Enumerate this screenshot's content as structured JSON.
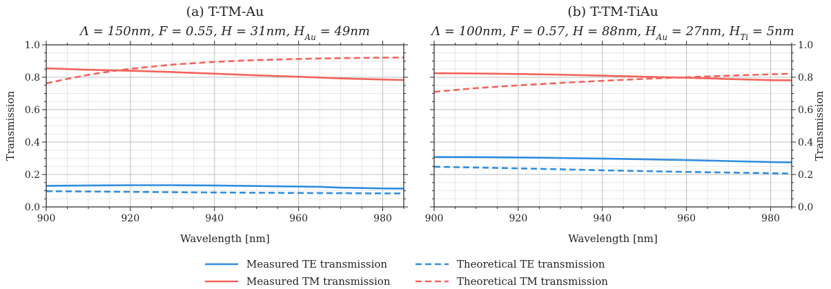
{
  "chart_data": [
    {
      "type": "line",
      "title": "(a) T-TM-Au",
      "subtitle": "Λ = 150nm, F = 0.55, H = 31nm, H_Au = 49nm",
      "xlabel": "Wavelength [nm]",
      "ylabel": "Transmission",
      "xlim": [
        900,
        985
      ],
      "ylim": [
        0.0,
        1.0
      ],
      "xticks": [
        900,
        920,
        940,
        960,
        980
      ],
      "yticks": [
        "0.0",
        "0.2",
        "0.4",
        "0.6",
        "0.8",
        "1.0"
      ],
      "grid": true,
      "series": [
        {
          "name": "Measured TE transmission",
          "color": "#2e8de0",
          "dash": "solid",
          "x": [
            900,
            910,
            920,
            930,
            940,
            950,
            960,
            965,
            970,
            980,
            985
          ],
          "y": [
            0.13,
            0.132,
            0.134,
            0.134,
            0.132,
            0.129,
            0.126,
            0.124,
            0.119,
            0.114,
            0.113
          ]
        },
        {
          "name": "Measured TM transmission",
          "color": "#f4625a",
          "dash": "solid",
          "x": [
            900,
            910,
            920,
            930,
            940,
            950,
            960,
            965,
            970,
            980,
            985
          ],
          "y": [
            0.855,
            0.846,
            0.84,
            0.832,
            0.822,
            0.812,
            0.803,
            0.798,
            0.793,
            0.786,
            0.783
          ]
        },
        {
          "name": "Theoretical TE transmission",
          "color": "#2e8de0",
          "dash": "dashed",
          "x": [
            900,
            920,
            940,
            960,
            985
          ],
          "y": [
            0.097,
            0.093,
            0.089,
            0.086,
            0.083
          ]
        },
        {
          "name": "Theoretical TM transmission",
          "color": "#f4625a",
          "dash": "dashed",
          "x": [
            900,
            905,
            910,
            915,
            920,
            930,
            940,
            950,
            960,
            970,
            980,
            985
          ],
          "y": [
            0.762,
            0.79,
            0.815,
            0.835,
            0.852,
            0.878,
            0.895,
            0.906,
            0.913,
            0.918,
            0.921,
            0.922
          ]
        }
      ]
    },
    {
      "type": "line",
      "title": "(b) T-TM-TiAu",
      "subtitle": "Λ = 100nm, F = 0.57, H = 88nm, H_Au = 27nm, H_Ti = 5nm",
      "xlabel": "Wavelength [nm]",
      "ylabel": "Transmission",
      "xlim": [
        900,
        985
      ],
      "ylim": [
        0.0,
        1.0
      ],
      "xticks": [
        900,
        920,
        940,
        960,
        980
      ],
      "yticks": [
        "0.0",
        "0.2",
        "0.4",
        "0.6",
        "0.8",
        "1.0"
      ],
      "grid": true,
      "series": [
        {
          "name": "Measured TE transmission",
          "color": "#2e8de0",
          "dash": "solid",
          "x": [
            900,
            910,
            920,
            930,
            940,
            950,
            960,
            970,
            980,
            985
          ],
          "y": [
            0.308,
            0.307,
            0.305,
            0.302,
            0.298,
            0.294,
            0.289,
            0.283,
            0.277,
            0.275
          ]
        },
        {
          "name": "Measured TM transmission",
          "color": "#f4625a",
          "dash": "solid",
          "x": [
            900,
            910,
            920,
            930,
            940,
            950,
            960,
            970,
            980,
            985
          ],
          "y": [
            0.825,
            0.823,
            0.82,
            0.816,
            0.81,
            0.803,
            0.797,
            0.789,
            0.782,
            0.781
          ]
        },
        {
          "name": "Theoretical TE transmission",
          "color": "#2e8de0",
          "dash": "dashed",
          "x": [
            900,
            920,
            940,
            960,
            985
          ],
          "y": [
            0.248,
            0.238,
            0.226,
            0.216,
            0.206
          ]
        },
        {
          "name": "Theoretical TM transmission",
          "color": "#f4625a",
          "dash": "dashed",
          "x": [
            900,
            910,
            920,
            930,
            940,
            950,
            960,
            970,
            980,
            985
          ],
          "y": [
            0.71,
            0.733,
            0.75,
            0.765,
            0.778,
            0.79,
            0.8,
            0.81,
            0.818,
            0.822
          ]
        }
      ]
    }
  ],
  "legend": {
    "placement": "bottom-center",
    "entries": [
      {
        "label": "Measured TE transmission",
        "color": "#2e8de0",
        "dash": "solid"
      },
      {
        "label": "Theoretical TE transmission",
        "color": "#2e8de0",
        "dash": "dashed"
      },
      {
        "label": "Measured TM transmission",
        "color": "#f4625a",
        "dash": "solid"
      },
      {
        "label": "Theoretical TM transmission",
        "color": "#f4625a",
        "dash": "dashed"
      }
    ]
  }
}
